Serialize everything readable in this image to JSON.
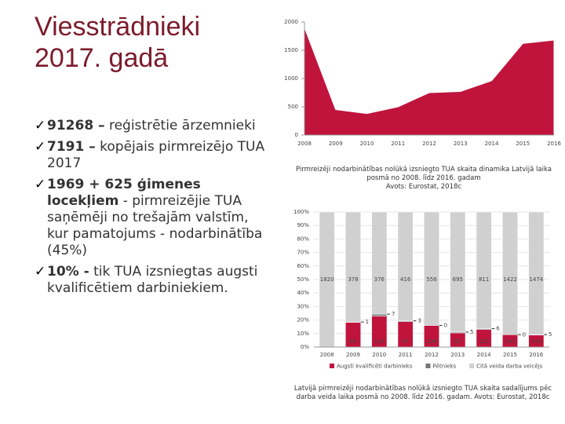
{
  "title": "Viesstrādnieki 2017. gadā",
  "bullets": [
    {
      "bold": "91268 –",
      "text": " reģistrētie ārzemnieki"
    },
    {
      "bold": "7191 –",
      "text": " kopējais pirmreizējo TUA 2017"
    },
    {
      "bold": "1969  + 625 ģimenes locekļiem",
      "text": " - pirmreizējie TUA saņēmēji no trešajām valstīm, kur pamatojums - nodarbinātība (45%)"
    },
    {
      "bold": "10% -",
      "text": " tik TUA izsniegtas augsti kvalificētiem darbiniekiem."
    }
  ],
  "captions": [
    {
      "text": "Pirmreizēji nodarbinātības nolūkā izsniegto TUA skaita dinamika Latvijā laika posmā no 2008. līdz 2016. gadam",
      "source": "Avots: Eurostat, 2018c"
    },
    {
      "text": "Latvijā pirmreizēji nodarbinātības nolūkā izsniegto TUA skaita sadalījums pēc darba veida laika posmā no 2008. līdz 2016. gadam. Avots: Eurostat, 2018c"
    }
  ],
  "chart_data": [
    {
      "type": "area",
      "categories": [
        "2008",
        "2009",
        "2010",
        "2011",
        "2012",
        "2013",
        "2014",
        "2015",
        "2016"
      ],
      "values": [
        1900,
        450,
        380,
        500,
        750,
        770,
        960,
        1620,
        1680
      ],
      "color": "#c0143c",
      "ylim": [
        0,
        2000
      ],
      "yticks": [
        0,
        500,
        1000,
        1500,
        2000
      ]
    },
    {
      "type": "stacked_bar",
      "stacked": "percent",
      "categories": [
        "2008",
        "2009",
        "2010",
        "2011",
        "2012",
        "2013",
        "2014",
        "2015",
        "2016"
      ],
      "ylim": [
        0,
        100
      ],
      "yticks": [
        {
          "value": 0,
          "label": "0%"
        },
        {
          "value": 10,
          "label": "10%"
        },
        {
          "value": 20,
          "label": "20%"
        },
        {
          "value": 30,
          "label": "30%"
        },
        {
          "value": 40,
          "label": "40%"
        },
        {
          "value": 50,
          "label": "50%"
        },
        {
          "value": 60,
          "label": "60%"
        },
        {
          "value": 70,
          "label": "70%"
        },
        {
          "value": 80,
          "label": "80%"
        },
        {
          "value": 90,
          "label": "90%"
        },
        {
          "value": 100,
          "label": "100%"
        }
      ],
      "grid": true,
      "series": [
        {
          "name": "Augsti kvalificēti darbinieks",
          "color": "#c0143c",
          "values": [
            0,
            85,
            114,
            97,
            106,
            82,
            122,
            143,
            144
          ]
        },
        {
          "name": "Pētnieks",
          "color": "#777777",
          "values": [
            0,
            1,
            7,
            3,
            0,
            5,
            6,
            0,
            5
          ]
        },
        {
          "name": "Citā veida darba veicējs",
          "color": "#d0d0d0",
          "values": [
            1820,
            378,
            376,
            416,
            556,
            695,
            811,
            1422,
            1474
          ]
        }
      ]
    }
  ]
}
